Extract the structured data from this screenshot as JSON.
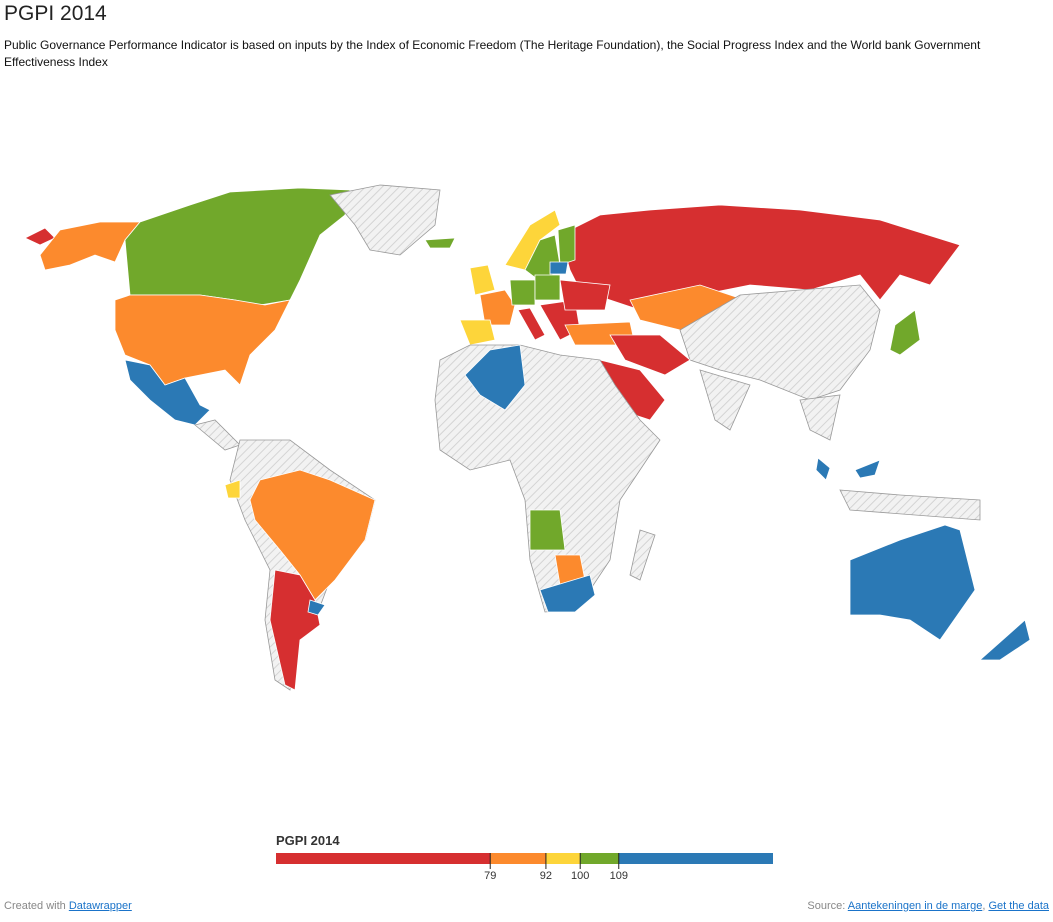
{
  "header": {
    "title": "PGPI 2014",
    "subtitle": "Public Governance Performance Indicator is based on inputs by the Index of Economic Freedom (The Heritage Foundation), the Social Progress Index and the World bank Government Effectiveness Index"
  },
  "legend": {
    "title": "PGPI 2014",
    "range": [
      29,
      145
    ],
    "thresholds": [
      79,
      92,
      100,
      109
    ],
    "colors": [
      "#d62f30",
      "#fc8a2d",
      "#fdd53a",
      "#71a82b",
      "#2b79b5"
    ]
  },
  "footer": {
    "created": "Created with",
    "tool": "Datawrapper",
    "source": "Source:",
    "links": [
      "Aantekeningen in de marge",
      "Get the data"
    ],
    "separator": ","
  }
}
